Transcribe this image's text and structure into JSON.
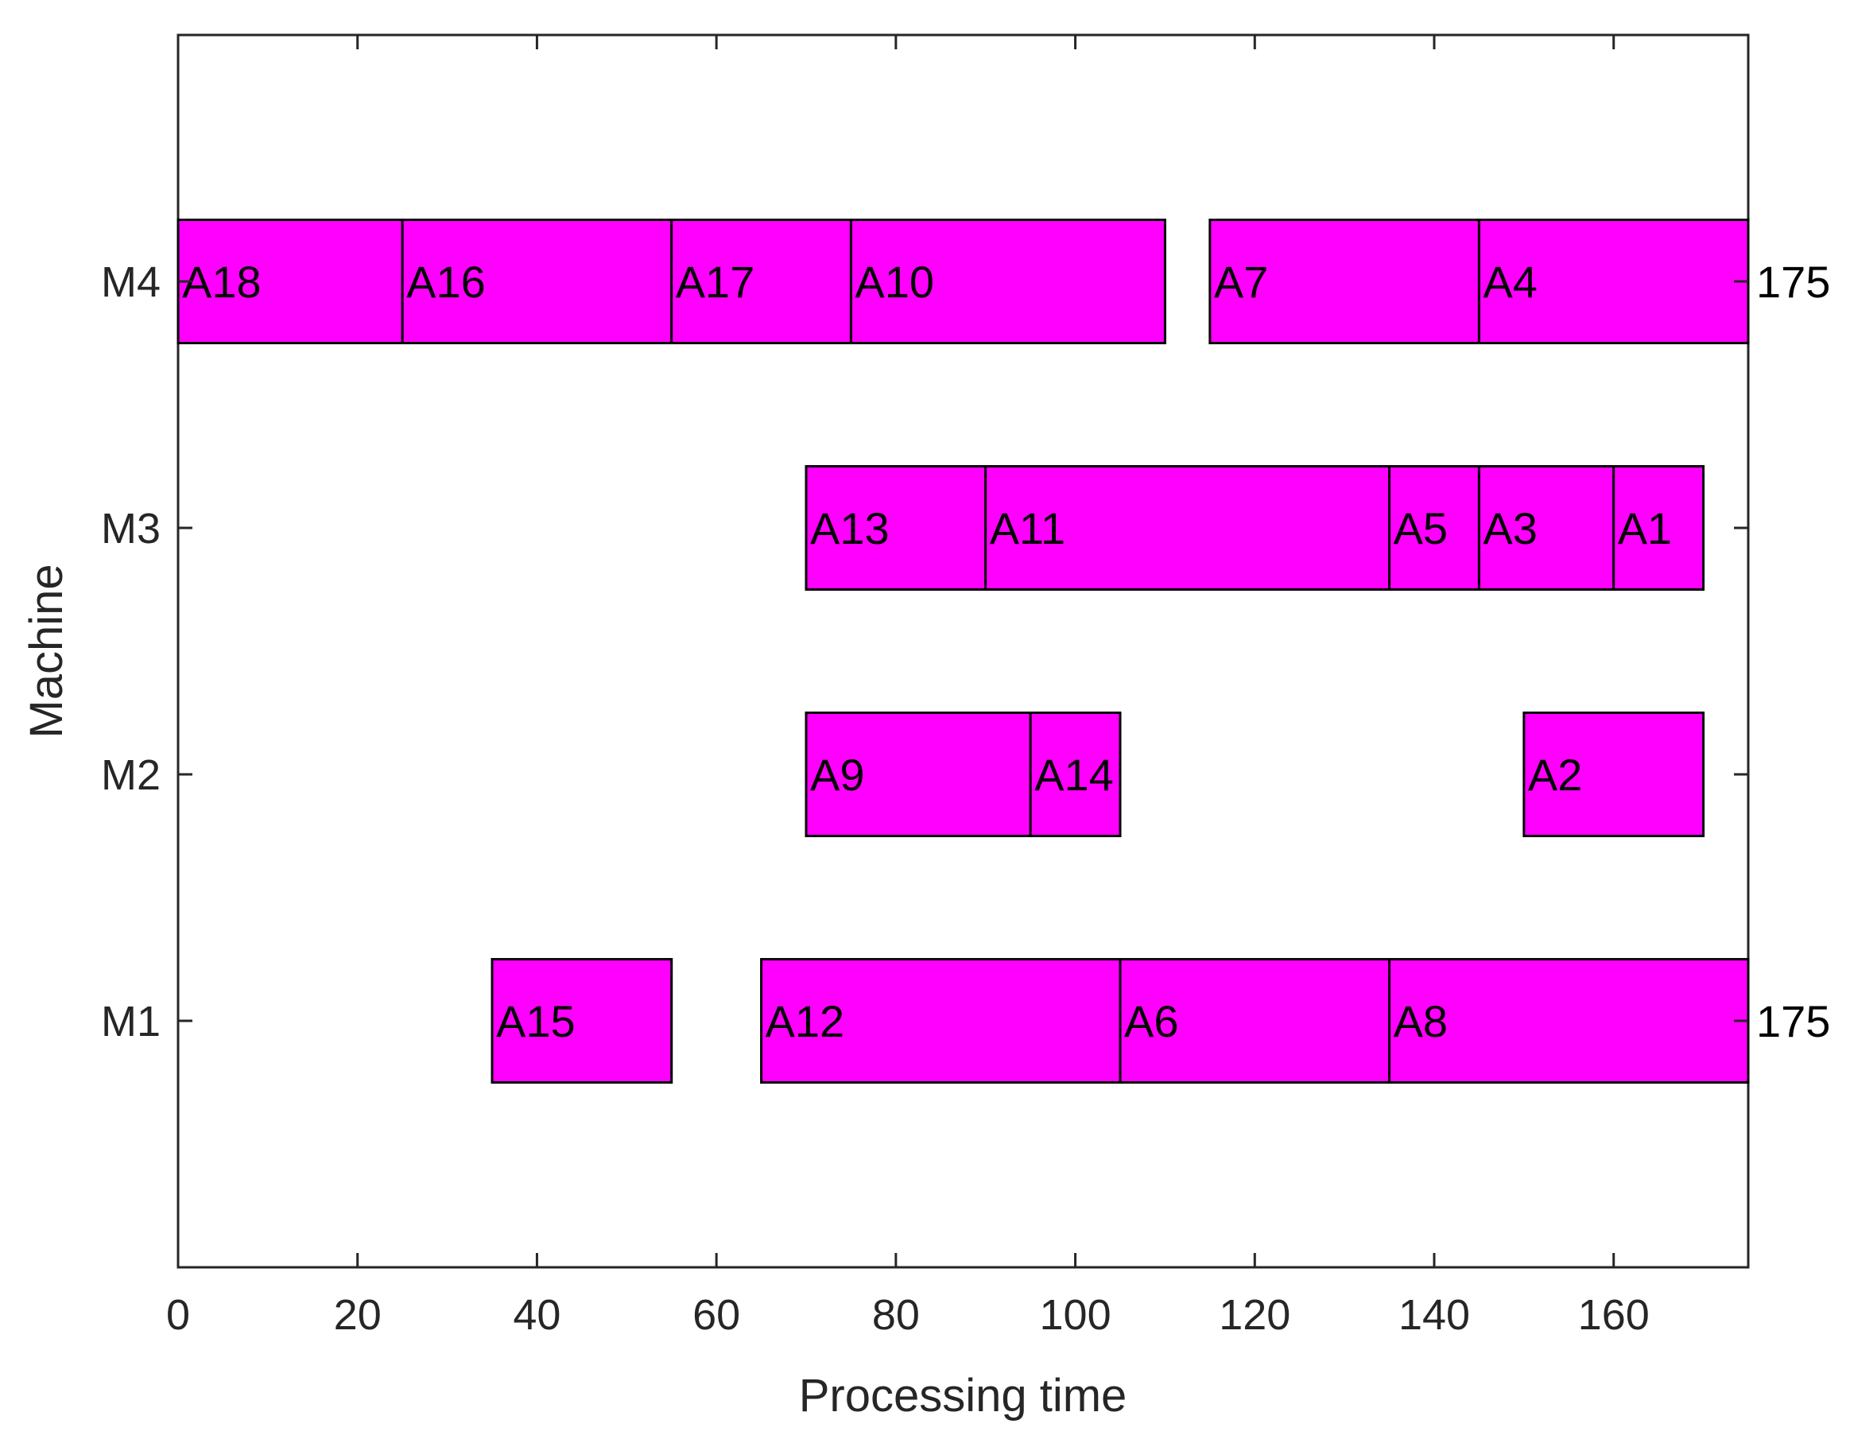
{
  "chart_data": {
    "type": "gantt",
    "xlabel": "Processing time",
    "ylabel": "Machine",
    "xlim": [
      0,
      175
    ],
    "xticks": [
      0,
      20,
      40,
      60,
      80,
      100,
      120,
      140,
      160
    ],
    "machines": [
      "M1",
      "M2",
      "M3",
      "M4"
    ],
    "bar_color": "#ff00ff",
    "edge_color": "#000000",
    "grid": false,
    "tasks": [
      {
        "machine": "M4",
        "label": "A18",
        "start": 0,
        "end": 25
      },
      {
        "machine": "M4",
        "label": "A16",
        "start": 25,
        "end": 55
      },
      {
        "machine": "M4",
        "label": "A17",
        "start": 55,
        "end": 75
      },
      {
        "machine": "M4",
        "label": "A10",
        "start": 75,
        "end": 110
      },
      {
        "machine": "M4",
        "label": "A7",
        "start": 115,
        "end": 145
      },
      {
        "machine": "M4",
        "label": "A4",
        "start": 145,
        "end": 175
      },
      {
        "machine": "M3",
        "label": "A13",
        "start": 70,
        "end": 90
      },
      {
        "machine": "M3",
        "label": "A11",
        "start": 90,
        "end": 135
      },
      {
        "machine": "M3",
        "label": "A5",
        "start": 135,
        "end": 145
      },
      {
        "machine": "M3",
        "label": "A3",
        "start": 145,
        "end": 160
      },
      {
        "machine": "M3",
        "label": "A1",
        "start": 160,
        "end": 170
      },
      {
        "machine": "M2",
        "label": "A9",
        "start": 70,
        "end": 95
      },
      {
        "machine": "M2",
        "label": "A14",
        "start": 95,
        "end": 105
      },
      {
        "machine": "M2",
        "label": "A2",
        "start": 150,
        "end": 170
      },
      {
        "machine": "M1",
        "label": "A15",
        "start": 35,
        "end": 55
      },
      {
        "machine": "M1",
        "label": "A12",
        "start": 65,
        "end": 105
      },
      {
        "machine": "M1",
        "label": "A6",
        "start": 105,
        "end": 135
      },
      {
        "machine": "M1",
        "label": "A8",
        "start": 135,
        "end": 175
      }
    ],
    "end_annotations": [
      {
        "machine": "M4",
        "text": "175"
      },
      {
        "machine": "M1",
        "text": "175"
      }
    ]
  }
}
